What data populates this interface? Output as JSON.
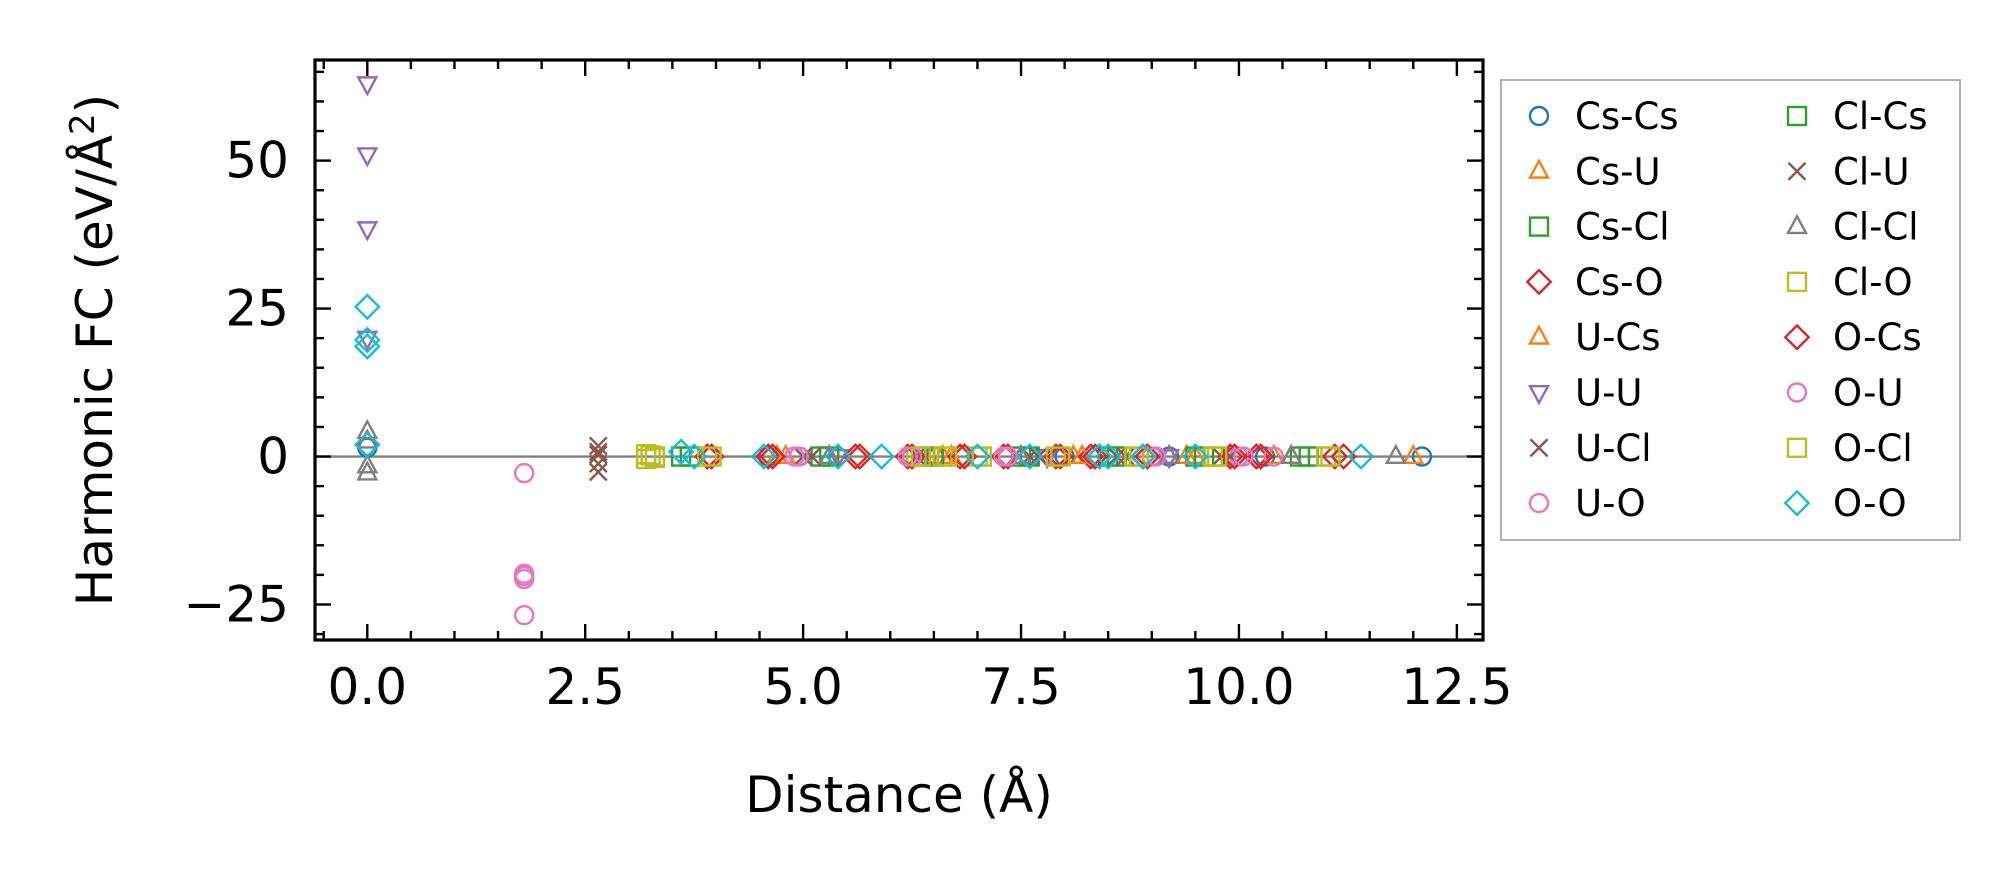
{
  "chart_data": {
    "type": "scatter",
    "xlabel": "Distance (Å)",
    "ylabel": "Harmonic FC (eV/Å",
    "ylabel_superscript": "2",
    "ylabel_suffix": ")",
    "xlim": [
      -0.6,
      12.8
    ],
    "ylim": [
      -31,
      67
    ],
    "x_ticks": [
      0.0,
      2.5,
      5.0,
      7.5,
      10.0,
      12.5
    ],
    "x_tick_labels": [
      "0.0",
      "2.5",
      "5.0",
      "7.5",
      "10.0",
      "12.5"
    ],
    "y_ticks": [
      -25,
      0,
      25,
      50
    ],
    "y_tick_labels": [
      "−25",
      "0",
      "25",
      "50"
    ],
    "zero_line": true,
    "grid": false,
    "legend": {
      "placement": "outside-right",
      "columns": 2
    },
    "series": [
      {
        "name": "Cs-Cs",
        "marker": "circle",
        "color": "#1f77b4",
        "points": [
          [
            0.0,
            1.5
          ],
          [
            4.6,
            0
          ],
          [
            6.5,
            0
          ],
          [
            8.0,
            0
          ],
          [
            9.2,
            0
          ],
          [
            10.3,
            0
          ],
          [
            12.1,
            0
          ]
        ]
      },
      {
        "name": "Cs-U",
        "marker": "triangle-up",
        "color": "#ff7f0e",
        "points": [
          [
            4.7,
            0
          ],
          [
            6.6,
            0
          ],
          [
            8.1,
            0
          ],
          [
            9.4,
            0
          ],
          [
            10.4,
            0
          ],
          [
            12.0,
            0
          ]
        ]
      },
      {
        "name": "Cs-Cl",
        "marker": "square",
        "color": "#2ca02c",
        "points": [
          [
            3.6,
            0
          ],
          [
            5.2,
            0
          ],
          [
            6.4,
            0
          ],
          [
            7.5,
            0
          ],
          [
            8.5,
            0
          ],
          [
            9.5,
            0
          ],
          [
            10.7,
            0
          ]
        ]
      },
      {
        "name": "Cs-O",
        "marker": "diamond",
        "color": "#d62728",
        "points": [
          [
            3.9,
            0
          ],
          [
            4.6,
            0
          ],
          [
            5.6,
            0
          ],
          [
            6.2,
            0
          ],
          [
            6.8,
            0
          ],
          [
            7.3,
            0
          ],
          [
            7.9,
            0
          ],
          [
            8.3,
            0
          ],
          [
            8.9,
            0
          ],
          [
            9.9,
            0
          ],
          [
            10.2,
            0
          ],
          [
            11.1,
            0
          ]
        ]
      },
      {
        "name": "U-Cs",
        "marker": "triangle-up",
        "color": "#ff7f0e",
        "points": [
          [
            4.8,
            0
          ],
          [
            6.7,
            0
          ],
          [
            8.2,
            0
          ],
          [
            9.5,
            0
          ],
          [
            10.6,
            0
          ]
        ]
      },
      {
        "name": "U-U",
        "marker": "triangle-down",
        "color": "#9467bd",
        "points": [
          [
            0.0,
            63
          ],
          [
            0.0,
            51
          ],
          [
            0.0,
            38.5
          ],
          [
            0.0,
            20
          ],
          [
            5.4,
            0
          ],
          [
            7.8,
            0
          ],
          [
            9.2,
            0
          ]
        ]
      },
      {
        "name": "U-Cl",
        "marker": "x",
        "color": "#8c564b",
        "points": [
          [
            2.65,
            1.8
          ],
          [
            2.65,
            0.3
          ],
          [
            2.65,
            -1.2
          ],
          [
            2.65,
            -2.6
          ],
          [
            5.0,
            0
          ],
          [
            6.3,
            0
          ],
          [
            7.6,
            0
          ],
          [
            8.6,
            0
          ],
          [
            9.8,
            0
          ]
        ]
      },
      {
        "name": "U-O",
        "marker": "circle",
        "color": "#e377c2",
        "points": [
          [
            1.8,
            -2.8
          ],
          [
            1.8,
            -19.8
          ],
          [
            1.8,
            -20.7
          ],
          [
            1.8,
            -26.8
          ],
          [
            4.9,
            0
          ],
          [
            6.2,
            0
          ],
          [
            7.3,
            0
          ],
          [
            9.0,
            0
          ],
          [
            10.0,
            0
          ],
          [
            10.4,
            0
          ]
        ]
      },
      {
        "name": "Cl-Cs",
        "marker": "square",
        "color": "#2ca02c",
        "points": [
          [
            3.7,
            0
          ],
          [
            5.3,
            0
          ],
          [
            6.5,
            0
          ],
          [
            7.6,
            0
          ],
          [
            8.6,
            0
          ],
          [
            9.6,
            0
          ],
          [
            10.8,
            0
          ]
        ]
      },
      {
        "name": "Cl-U",
        "marker": "x",
        "color": "#8c564b",
        "points": [
          [
            2.65,
            0.8
          ],
          [
            5.1,
            0
          ],
          [
            6.4,
            0
          ],
          [
            7.7,
            0
          ],
          [
            8.7,
            0
          ],
          [
            9.9,
            0
          ]
        ]
      },
      {
        "name": "Cl-Cl",
        "marker": "triangle-up",
        "color": "#7f7f7f",
        "points": [
          [
            0.0,
            4.2
          ],
          [
            0.0,
            2.6
          ],
          [
            0.0,
            -1.6
          ],
          [
            0.0,
            -2.8
          ],
          [
            5.3,
            0
          ],
          [
            7.5,
            0
          ],
          [
            9.2,
            0
          ],
          [
            10.6,
            0
          ],
          [
            11.8,
            0
          ]
        ]
      },
      {
        "name": "Cl-O",
        "marker": "square",
        "color": "#bcbd22",
        "points": [
          [
            3.2,
            0.4
          ],
          [
            3.2,
            -0.4
          ],
          [
            3.3,
            0
          ],
          [
            3.9,
            0
          ],
          [
            6.3,
            0
          ],
          [
            6.6,
            0
          ],
          [
            7.0,
            0
          ],
          [
            7.9,
            0
          ],
          [
            8.8,
            0
          ],
          [
            9.7,
            0
          ],
          [
            11.0,
            0
          ]
        ]
      },
      {
        "name": "O-Cs",
        "marker": "diamond",
        "color": "#d62728",
        "points": [
          [
            3.95,
            0
          ],
          [
            4.65,
            0
          ],
          [
            5.65,
            0
          ],
          [
            6.25,
            0
          ],
          [
            6.85,
            0
          ],
          [
            7.35,
            0
          ],
          [
            7.95,
            0
          ],
          [
            8.35,
            0
          ],
          [
            8.95,
            0
          ],
          [
            9.95,
            0
          ],
          [
            10.25,
            0
          ],
          [
            11.2,
            0
          ]
        ]
      },
      {
        "name": "O-U",
        "marker": "circle",
        "color": "#e377c2",
        "points": [
          [
            1.8,
            -20.2
          ],
          [
            4.95,
            0
          ],
          [
            6.25,
            0
          ],
          [
            7.35,
            0
          ],
          [
            9.05,
            0
          ],
          [
            10.05,
            0
          ]
        ]
      },
      {
        "name": "O-Cl",
        "marker": "square",
        "color": "#bcbd22",
        "points": [
          [
            3.25,
            0.2
          ],
          [
            3.3,
            -0.2
          ],
          [
            3.95,
            0
          ],
          [
            6.35,
            0
          ],
          [
            6.65,
            0
          ],
          [
            7.05,
            0
          ],
          [
            7.95,
            0
          ],
          [
            8.85,
            0
          ],
          [
            9.75,
            0
          ],
          [
            11.05,
            0
          ]
        ]
      },
      {
        "name": "O-O",
        "marker": "diamond",
        "color": "#17becf",
        "points": [
          [
            0.0,
            25.3
          ],
          [
            0.0,
            19.7
          ],
          [
            0.0,
            18.6
          ],
          [
            0.0,
            2.0
          ],
          [
            3.6,
            0.8
          ],
          [
            3.75,
            0
          ],
          [
            4.55,
            0
          ],
          [
            5.4,
            0
          ],
          [
            5.9,
            0
          ],
          [
            7.0,
            0
          ],
          [
            7.6,
            0
          ],
          [
            8.4,
            0
          ],
          [
            8.5,
            0
          ],
          [
            8.9,
            0
          ],
          [
            9.5,
            0
          ],
          [
            11.4,
            0
          ]
        ]
      }
    ]
  }
}
